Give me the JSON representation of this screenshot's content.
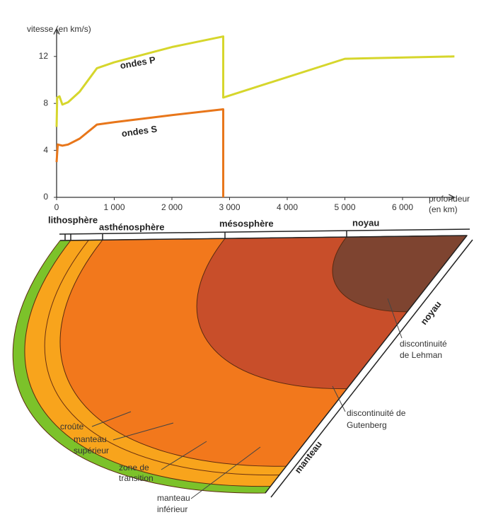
{
  "chart_data": {
    "type": "line",
    "ylabel": "vitesse (en km/s)",
    "xlabel": [
      "profondeur",
      "(en km)"
    ],
    "xlim": [
      0,
      6900
    ],
    "ylim": [
      0,
      14
    ],
    "xticks": [
      0,
      {
        "value": 1000,
        "label": "1 000"
      },
      {
        "value": 2000,
        "label": "2 000"
      },
      {
        "value": 3000,
        "label": "3 000"
      },
      {
        "value": 4000,
        "label": "4 000"
      },
      {
        "value": 5000,
        "label": "5 000"
      },
      {
        "value": 6000,
        "label": "6 000"
      }
    ],
    "yticks": [
      0,
      4,
      8,
      12
    ],
    "series": [
      {
        "name": "ondes P",
        "color": "#d6d62c",
        "x": [
          0,
          10,
          50,
          100,
          200,
          400,
          700,
          1000,
          2000,
          2890,
          2890,
          5000,
          6900
        ],
        "values": [
          6.0,
          8.5,
          8.6,
          7.9,
          8.1,
          9.0,
          11.0,
          11.5,
          12.8,
          13.7,
          8.5,
          11.8,
          12.0
        ]
      },
      {
        "name": "ondes S",
        "color": "#e8761a",
        "x": [
          0,
          20,
          100,
          200,
          400,
          700,
          1000,
          2000,
          2890,
          2890
        ],
        "values": [
          3.0,
          4.5,
          4.4,
          4.5,
          5.0,
          6.2,
          6.4,
          7.0,
          7.5,
          0
        ]
      }
    ]
  },
  "diagram": {
    "top_labels": [
      "lithosphère",
      "asthénosphère",
      "mésosphère",
      "noyau"
    ],
    "side_labels": [
      "noyau",
      "manteau"
    ],
    "callouts": [
      [
        "discontinuité",
        "de Lehman"
      ],
      [
        "discontinuité de",
        "Gutenberg"
      ],
      [
        "croûte"
      ],
      [
        "manteau",
        "supérieur"
      ],
      [
        "zone de",
        "transition"
      ],
      [
        "manteau",
        "inférieur"
      ]
    ]
  }
}
